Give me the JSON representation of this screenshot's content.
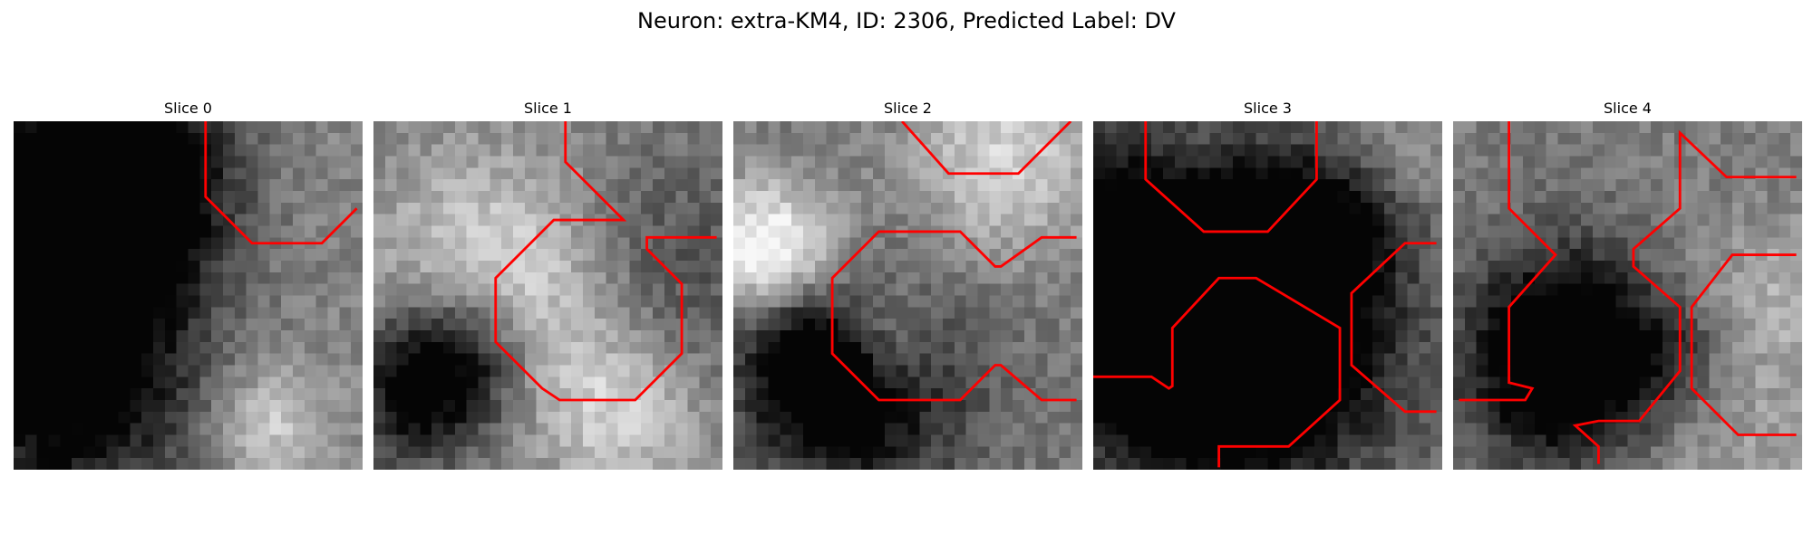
{
  "figure": {
    "title": "Neuron: extra-KM4, ID: 2306, Predicted Label: DV"
  },
  "panels": [
    {
      "title": "Slice 0"
    },
    {
      "title": "Slice 1"
    },
    {
      "title": "Slice 2"
    },
    {
      "title": "Slice 3"
    },
    {
      "title": "Slice 4"
    }
  ],
  "colors": {
    "contour": "#ff0000",
    "background": "#ffffff"
  }
}
